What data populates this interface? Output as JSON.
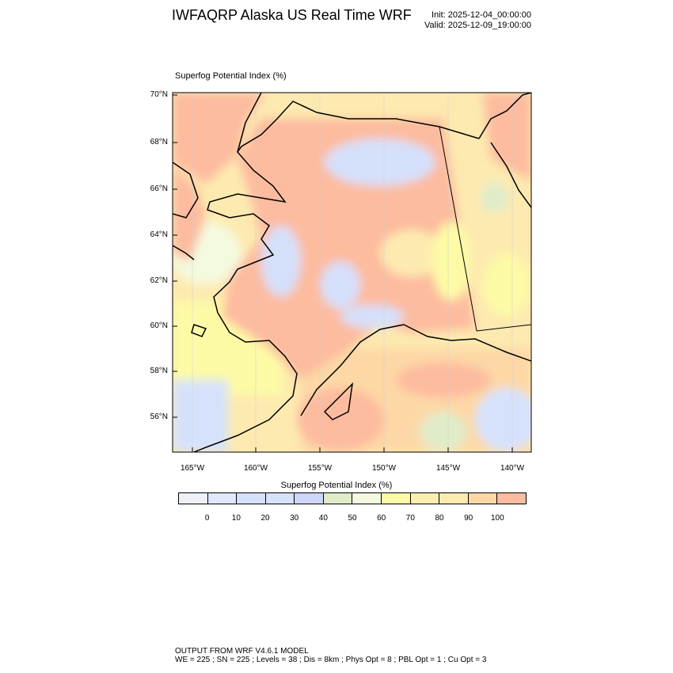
{
  "header": {
    "title": "IWFAQRP Alaska US Real Time WRF",
    "init": "Init: 2025-12-04_00:00:00",
    "valid": "Valid: 2025-12-09_19:00:00"
  },
  "plot": {
    "label": "Superfog Potential Index   (%)",
    "lat_ticks": [
      "70°N",
      "68°N",
      "66°N",
      "64°N",
      "62°N",
      "60°N",
      "58°N",
      "56°N"
    ],
    "lon_ticks": [
      "165°W",
      "160°W",
      "155°W",
      "150°W",
      "145°W",
      "140°W"
    ]
  },
  "colorbar": {
    "title": "Superfog Potential Index  (%)",
    "labels": [
      "0",
      "10",
      "20",
      "30",
      "40",
      "50",
      "60",
      "70",
      "80",
      "90",
      "100"
    ],
    "colors": [
      "#eef2f8",
      "#e0e8fb",
      "#d5e0fb",
      "#d6e2fc",
      "#cdd7fb",
      "#e0ecc9",
      "#f4fadf",
      "#fdfaa6",
      "#fdeeb0",
      "#fdeab0",
      "#fdd8a6",
      "#fdbb9f"
    ]
  },
  "footer": {
    "line1": "OUTPUT FROM WRF V4.6.1 MODEL",
    "line2": "WE = 225 ; SN = 225 ; Levels = 38 ; Dis = 8km ; Phys Opt = 8 ; PBL Opt = 1 ; Cu Opt = 3"
  }
}
